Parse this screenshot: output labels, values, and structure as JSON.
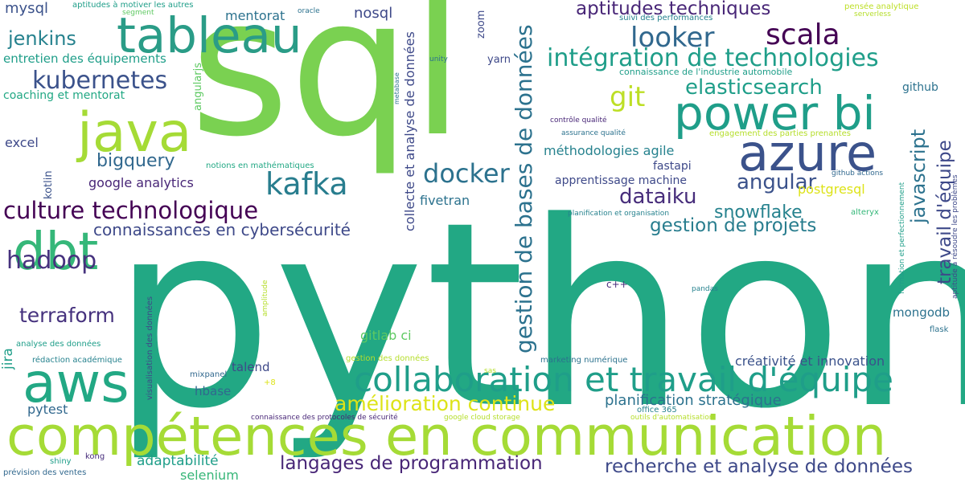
{
  "words": [
    {
      "text": "python",
      "color": "#22a884"
    },
    {
      "text": "sql",
      "color": "#7ad151"
    },
    {
      "text": "compétences en communication",
      "color": "#a5db36"
    },
    {
      "text": "tableau",
      "color": "#2a9c87"
    },
    {
      "text": "power bi",
      "color": "#1f9e89"
    },
    {
      "text": "azure",
      "color": "#3b528b"
    },
    {
      "text": "java",
      "color": "#a5db36"
    },
    {
      "text": "aws",
      "color": "#22a884"
    },
    {
      "text": "dbt",
      "color": "#35b779"
    },
    {
      "text": "collaboration et travail d'équipe",
      "color": "#1f9e89"
    },
    {
      "text": "gestion de bases de données",
      "color": "#2c728e"
    },
    {
      "text": "scala",
      "color": "#440154"
    },
    {
      "text": "looker",
      "color": "#31688e"
    },
    {
      "text": "kafka",
      "color": "#287d8e"
    },
    {
      "text": "docker",
      "color": "#2c728e"
    },
    {
      "text": "intégration de technologies",
      "color": "#1f9e89"
    },
    {
      "text": "kubernetes",
      "color": "#3b528b"
    },
    {
      "text": "hadoop",
      "color": "#46327e"
    },
    {
      "text": "culture technologique",
      "color": "#440154"
    },
    {
      "text": "langages de programmation",
      "color": "#482677"
    },
    {
      "text": "recherche et analyse de données",
      "color": "#3e4989"
    },
    {
      "text": "amélioration continue",
      "color": "#dde318"
    },
    {
      "text": "terraform",
      "color": "#46327e"
    },
    {
      "text": "git",
      "color": "#bddf26"
    },
    {
      "text": "elasticsearch",
      "color": "#1f9e89"
    },
    {
      "text": "aptitudes techniques",
      "color": "#482677"
    },
    {
      "text": "javascript",
      "color": "#2c728e"
    },
    {
      "text": "travail d'équipe",
      "color": "#3e4989"
    },
    {
      "text": "dataiku",
      "color": "#472d7b"
    },
    {
      "text": "angular",
      "color": "#3b528b"
    },
    {
      "text": "gestion de projets",
      "color": "#287d8e"
    },
    {
      "text": "snowflake",
      "color": "#26828e"
    },
    {
      "text": "connaissances en cybersécurité",
      "color": "#3e4989"
    },
    {
      "text": "collecte et analyse de données",
      "color": "#3e4989"
    },
    {
      "text": "bigquery",
      "color": "#31688e"
    },
    {
      "text": "jenkins",
      "color": "#26828e"
    },
    {
      "text": "adaptabilité",
      "color": "#1f9e89"
    },
    {
      "text": "selenium",
      "color": "#37b678"
    },
    {
      "text": "planification stratégique",
      "color": "#2c728e"
    },
    {
      "text": "créativité et innovation",
      "color": "#3b528b"
    },
    {
      "text": "méthodologies agile",
      "color": "#26828e"
    },
    {
      "text": "nosql",
      "color": "#3e4989"
    },
    {
      "text": "mysql",
      "color": "#3b528b"
    },
    {
      "text": "entretien des équipements",
      "color": "#1f9e89"
    },
    {
      "text": "google analytics",
      "color": "#482677"
    },
    {
      "text": "mentorat",
      "color": "#2c728e"
    },
    {
      "text": "coaching et mentorat",
      "color": "#22a884"
    },
    {
      "text": "apprentissage machine",
      "color": "#3e4989"
    },
    {
      "text": "fivetran",
      "color": "#2c728e"
    },
    {
      "text": "postgresql",
      "color": "#dde318"
    },
    {
      "text": "excel",
      "color": "#3e4989"
    },
    {
      "text": "pytest",
      "color": "#31688e"
    },
    {
      "text": "gitlab ci",
      "color": "#5ec962"
    },
    {
      "text": "mongodb",
      "color": "#2c728e"
    },
    {
      "text": "jira",
      "color": "#1f9e89"
    },
    {
      "text": "talend",
      "color": "#3e4989"
    },
    {
      "text": "hbase",
      "color": "#31688e"
    },
    {
      "text": "fastapi",
      "color": "#3e4989"
    },
    {
      "text": "github",
      "color": "#2c728e"
    },
    {
      "text": "connaissance de l'industrie automobile",
      "color": "#1f9e89"
    },
    {
      "text": "kotlin",
      "color": "#3b528b"
    },
    {
      "text": "angularjs",
      "color": "#5ec962"
    },
    {
      "text": "zoom",
      "color": "#3e4989"
    },
    {
      "text": "yarn",
      "color": "#3e4989"
    },
    {
      "text": "suivi des performances",
      "color": "#26828e"
    },
    {
      "text": "aptitudes à motiver les autres",
      "color": "#1f9e89"
    },
    {
      "text": "notions en mathématiques",
      "color": "#22a884"
    },
    {
      "text": "shiny",
      "color": "#1f9e89"
    },
    {
      "text": "kong",
      "color": "#472d7b"
    },
    {
      "text": "prévision des ventes",
      "color": "#31688e"
    },
    {
      "text": "mixpanel",
      "color": "#31688e"
    },
    {
      "text": "office 365",
      "color": "#26828e"
    },
    {
      "text": "flask",
      "color": "#2c728e"
    },
    {
      "text": "visualisation des données",
      "color": "#3e4989"
    },
    {
      "text": "analyse des données",
      "color": "#1f9e89"
    },
    {
      "text": "rédaction académique",
      "color": "#26828e"
    },
    {
      "text": "marketing numérique",
      "color": "#2c728e"
    },
    {
      "text": "gestion des données",
      "color": "#b5de2b"
    },
    {
      "text": "c++",
      "color": "#472d7b"
    },
    {
      "text": "pensée analytique",
      "color": "#bddf26"
    },
    {
      "text": "serverless",
      "color": "#b5de2b"
    },
    {
      "text": "engagement des parties prenantes",
      "color": "#b5de2b"
    },
    {
      "text": "github actions",
      "color": "#31688e"
    },
    {
      "text": "contrôle qualité",
      "color": "#482677"
    },
    {
      "text": "assurance qualité",
      "color": "#2c728e"
    },
    {
      "text": "planification et organisation",
      "color": "#26828e"
    },
    {
      "text": "alteryx",
      "color": "#35b779"
    },
    {
      "text": "formation et perfectionnement",
      "color": "#1f9e89"
    },
    {
      "text": "aptitude à résoudre les problèmes",
      "color": "#3e4989"
    },
    {
      "text": "connaissance des protocoles de sécurité",
      "color": "#482677"
    },
    {
      "text": "google cloud storage",
      "color": "#b5de2b"
    },
    {
      "text": "outils d'automatisation",
      "color": "#b5de2b"
    },
    {
      "text": "sas",
      "color": "#b5de2b"
    },
    {
      "text": "pandas",
      "color": "#26828e"
    },
    {
      "text": "amplitude",
      "color": "#b5de2b"
    },
    {
      "text": "metabase",
      "color": "#2c728e"
    },
    {
      "text": "unity",
      "color": "#2c728e"
    },
    {
      "text": "oracle",
      "color": "#2c728e"
    },
    {
      "text": "segment",
      "color": "#5ec962"
    },
    {
      "text": "+8",
      "color": "#dde318"
    }
  ]
}
